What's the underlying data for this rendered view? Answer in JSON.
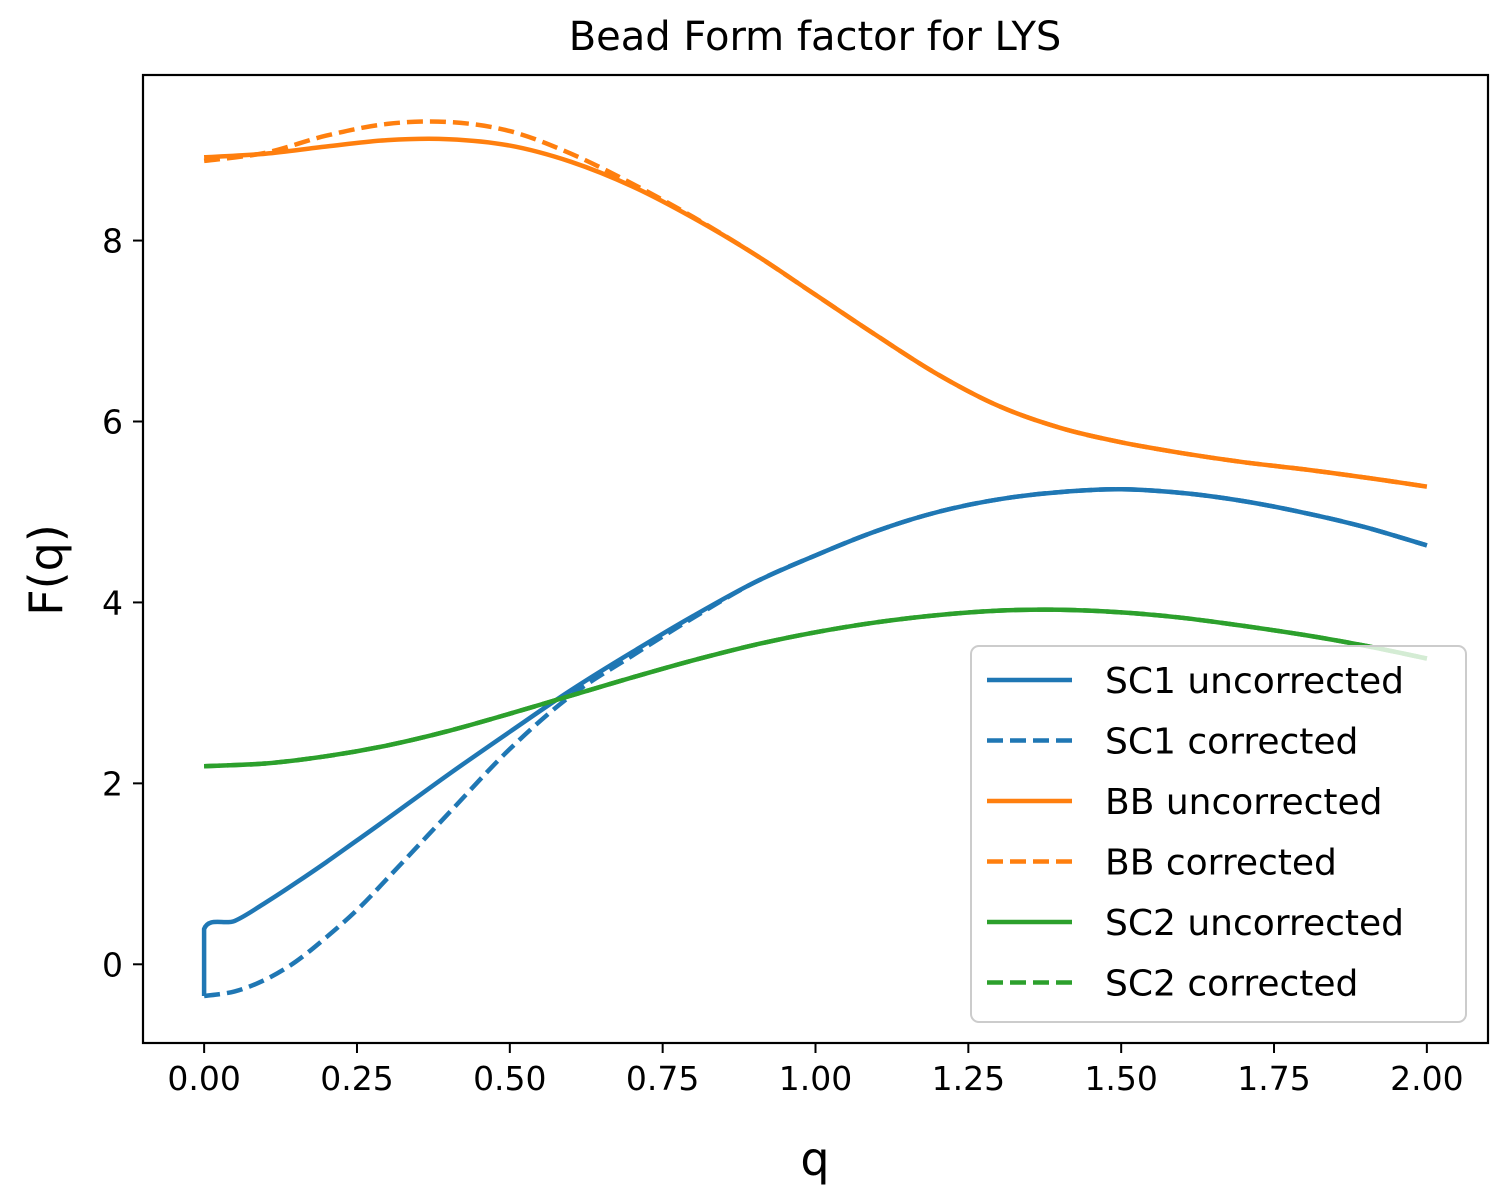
{
  "chart_data": {
    "type": "line",
    "title": "Bead Form factor for LYS",
    "xlabel": "q",
    "ylabel": "F(q)",
    "xlim": [
      -0.1,
      2.1
    ],
    "ylim": [
      -0.87,
      9.83
    ],
    "xticks": [
      0.0,
      0.25,
      0.5,
      0.75,
      1.0,
      1.25,
      1.5,
      1.75,
      2.0
    ],
    "xtick_labels": [
      "0.00",
      "0.25",
      "0.50",
      "0.75",
      "1.00",
      "1.25",
      "1.50",
      "1.75",
      "2.00"
    ],
    "yticks": [
      0,
      2,
      4,
      6,
      8
    ],
    "ytick_labels": [
      "0",
      "2",
      "4",
      "6",
      "8"
    ],
    "grid": false,
    "legend_position": "lower-right",
    "series": [
      {
        "name": "SC1 uncorrected",
        "color": "#1f77b4",
        "style": "solid",
        "x": [
          0.0,
          0.0,
          0.05,
          0.1,
          0.15,
          0.2,
          0.25,
          0.3,
          0.4,
          0.5,
          0.6,
          0.7,
          0.8,
          0.9,
          1.0,
          1.1,
          1.2,
          1.3,
          1.4,
          1.5,
          1.6,
          1.7,
          1.8,
          1.9,
          2.0
        ],
        "y": [
          -0.35,
          0.39,
          0.48,
          0.68,
          0.9,
          1.13,
          1.37,
          1.61,
          2.1,
          2.57,
          3.03,
          3.45,
          3.85,
          4.22,
          4.52,
          4.79,
          5.0,
          5.14,
          5.22,
          5.25,
          5.21,
          5.12,
          4.99,
          4.83,
          4.63
        ]
      },
      {
        "name": "SC1 corrected",
        "color": "#1f77b4",
        "style": "dashed",
        "x": [
          0.0,
          0.05,
          0.1,
          0.15,
          0.2,
          0.25,
          0.3,
          0.4,
          0.5,
          0.6,
          0.7,
          0.8,
          0.9,
          1.0,
          1.1,
          1.2,
          1.3,
          1.4,
          1.5,
          1.6,
          1.7,
          1.8,
          1.9,
          2.0
        ],
        "y": [
          -0.35,
          -0.3,
          -0.17,
          0.03,
          0.3,
          0.6,
          0.95,
          1.67,
          2.38,
          2.97,
          3.41,
          3.83,
          4.22,
          4.52,
          4.79,
          5.0,
          5.14,
          5.22,
          5.25,
          5.21,
          5.12,
          4.99,
          4.83,
          4.63
        ]
      },
      {
        "name": "BB uncorrected",
        "color": "#ff7f0e",
        "style": "solid",
        "x": [
          0.0,
          0.1,
          0.2,
          0.3,
          0.4,
          0.5,
          0.6,
          0.7,
          0.8,
          0.9,
          1.0,
          1.1,
          1.2,
          1.3,
          1.4,
          1.5,
          1.6,
          1.7,
          1.8,
          1.9,
          2.0
        ],
        "y": [
          8.92,
          8.96,
          9.04,
          9.11,
          9.12,
          9.05,
          8.87,
          8.6,
          8.25,
          7.85,
          7.4,
          6.95,
          6.52,
          6.17,
          5.93,
          5.77,
          5.65,
          5.55,
          5.47,
          5.38,
          5.28
        ]
      },
      {
        "name": "BB corrected",
        "color": "#ff7f0e",
        "style": "dashed",
        "x": [
          0.0,
          0.1,
          0.2,
          0.3,
          0.4,
          0.5,
          0.6,
          0.7,
          0.8,
          0.9,
          1.0,
          1.1,
          1.2,
          1.3,
          1.4,
          1.5,
          1.6,
          1.7,
          1.8,
          1.9,
          2.0
        ],
        "y": [
          8.88,
          8.97,
          9.16,
          9.29,
          9.31,
          9.21,
          8.96,
          8.63,
          8.26,
          7.85,
          7.4,
          6.95,
          6.52,
          6.17,
          5.93,
          5.77,
          5.65,
          5.55,
          5.47,
          5.38,
          5.28
        ]
      },
      {
        "name": "SC2 uncorrected",
        "color": "#2ca02c",
        "style": "solid",
        "x": [
          0.0,
          0.1,
          0.2,
          0.3,
          0.4,
          0.5,
          0.6,
          0.7,
          0.8,
          0.9,
          1.0,
          1.1,
          1.2,
          1.3,
          1.4,
          1.5,
          1.6,
          1.7,
          1.8,
          1.9,
          2.0
        ],
        "y": [
          2.19,
          2.22,
          2.3,
          2.42,
          2.58,
          2.77,
          2.97,
          3.17,
          3.36,
          3.53,
          3.67,
          3.78,
          3.86,
          3.91,
          3.92,
          3.89,
          3.83,
          3.74,
          3.64,
          3.52,
          3.38
        ]
      },
      {
        "name": "SC2 corrected",
        "color": "#2ca02c",
        "style": "dashed",
        "x": [
          0.0,
          0.1,
          0.2,
          0.3,
          0.4,
          0.5,
          0.6,
          0.7,
          0.8,
          0.9,
          1.0,
          1.1,
          1.2,
          1.3,
          1.4,
          1.5,
          1.6,
          1.7,
          1.8,
          1.9,
          2.0
        ],
        "y": [
          2.19,
          2.22,
          2.3,
          2.42,
          2.58,
          2.77,
          2.97,
          3.17,
          3.36,
          3.53,
          3.67,
          3.78,
          3.86,
          3.91,
          3.92,
          3.89,
          3.83,
          3.74,
          3.64,
          3.52,
          3.38
        ]
      }
    ]
  }
}
